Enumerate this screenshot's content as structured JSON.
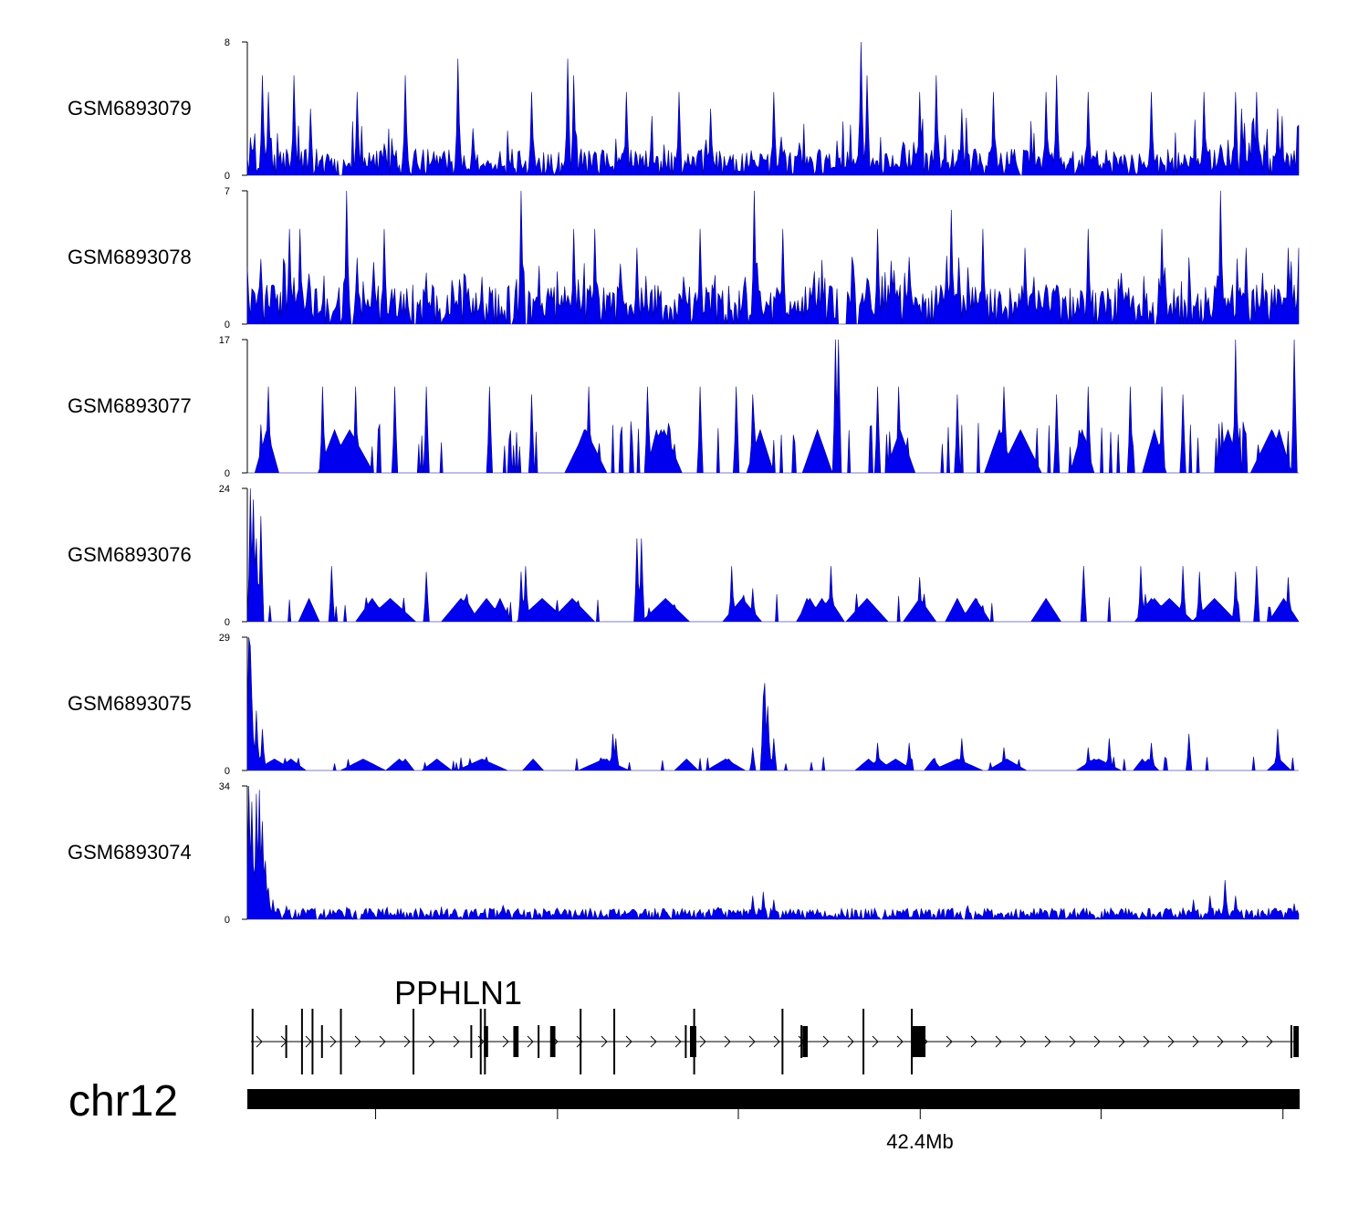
{
  "chart_data": {
    "type": "area",
    "tracks": [
      {
        "name": "GSM6893079",
        "ylim": [
          0,
          8
        ],
        "ymax_label": "8",
        "ymin_label": "0",
        "baseline": 1,
        "peak_prob": 0.09,
        "seed": 79,
        "peaks": [
          [
            0.015,
            6
          ],
          [
            0.02,
            5
          ],
          [
            0.045,
            6
          ],
          [
            0.06,
            4
          ],
          [
            0.105,
            5
          ],
          [
            0.15,
            6
          ],
          [
            0.2,
            7
          ],
          [
            0.27,
            5
          ],
          [
            0.305,
            7
          ],
          [
            0.31,
            6
          ],
          [
            0.36,
            5
          ],
          [
            0.41,
            5
          ],
          [
            0.44,
            4
          ],
          [
            0.5,
            5
          ],
          [
            0.584,
            8
          ],
          [
            0.59,
            6
          ],
          [
            0.64,
            5
          ],
          [
            0.655,
            6
          ],
          [
            0.68,
            4
          ],
          [
            0.71,
            5
          ],
          [
            0.76,
            5
          ],
          [
            0.77,
            6
          ],
          [
            0.8,
            5
          ],
          [
            0.86,
            5
          ],
          [
            0.91,
            5
          ],
          [
            0.94,
            5
          ],
          [
            0.945,
            4
          ],
          [
            0.96,
            5
          ],
          [
            0.98,
            4
          ],
          [
            1.0,
            3
          ]
        ]
      },
      {
        "name": "GSM6893078",
        "ylim": [
          0,
          7
        ],
        "ymax_label": "7",
        "ymin_label": "0",
        "baseline": 1.3,
        "peak_prob": 0.1,
        "seed": 78,
        "peaks": [
          [
            0.0,
            3
          ],
          [
            0.04,
            5
          ],
          [
            0.05,
            5
          ],
          [
            0.094,
            7
          ],
          [
            0.13,
            5
          ],
          [
            0.26,
            7
          ],
          [
            0.31,
            5
          ],
          [
            0.33,
            5
          ],
          [
            0.37,
            4
          ],
          [
            0.43,
            5
          ],
          [
            0.482,
            7
          ],
          [
            0.51,
            5
          ],
          [
            0.6,
            5
          ],
          [
            0.67,
            6
          ],
          [
            0.7,
            5
          ],
          [
            0.74,
            4
          ],
          [
            0.8,
            5
          ],
          [
            0.87,
            5
          ],
          [
            0.925,
            7
          ],
          [
            0.95,
            4
          ],
          [
            0.99,
            4
          ],
          [
            1.0,
            4
          ]
        ]
      },
      {
        "name": "GSM6893077",
        "ylim": [
          0,
          17
        ],
        "ymax_label": "17",
        "ymin_label": "0",
        "baseline": 0,
        "peak_prob": 0.11,
        "seed": 77,
        "tri": 5.5,
        "peaks": [
          [
            0.02,
            11
          ],
          [
            0.072,
            11
          ],
          [
            0.103,
            11
          ],
          [
            0.14,
            11
          ],
          [
            0.17,
            11
          ],
          [
            0.23,
            11
          ],
          [
            0.27,
            10
          ],
          [
            0.325,
            11
          ],
          [
            0.38,
            11
          ],
          [
            0.43,
            11
          ],
          [
            0.465,
            11
          ],
          [
            0.48,
            10
          ],
          [
            0.56,
            17
          ],
          [
            0.562,
            17
          ],
          [
            0.6,
            11
          ],
          [
            0.62,
            11
          ],
          [
            0.675,
            10
          ],
          [
            0.72,
            11
          ],
          [
            0.77,
            10
          ],
          [
            0.8,
            11
          ],
          [
            0.84,
            11
          ],
          [
            0.87,
            11
          ],
          [
            0.89,
            10
          ],
          [
            0.94,
            17
          ],
          [
            0.995,
            17
          ]
        ]
      },
      {
        "name": "GSM6893076",
        "ylim": [
          0,
          24
        ],
        "ymax_label": "24",
        "ymin_label": "0",
        "baseline": 0,
        "peak_prob": 0.06,
        "seed": 76,
        "tri": 4.2,
        "peaks": [
          [
            0.003,
            24
          ],
          [
            0.006,
            22
          ],
          [
            0.009,
            15
          ],
          [
            0.013,
            19
          ],
          [
            0.08,
            10
          ],
          [
            0.17,
            9
          ],
          [
            0.26,
            9
          ],
          [
            0.265,
            10
          ],
          [
            0.37,
            15
          ],
          [
            0.375,
            15
          ],
          [
            0.46,
            10
          ],
          [
            0.48,
            6
          ],
          [
            0.555,
            10
          ],
          [
            0.58,
            5
          ],
          [
            0.64,
            8
          ],
          [
            0.795,
            10
          ],
          [
            0.85,
            10
          ],
          [
            0.89,
            10
          ],
          [
            0.905,
            9
          ],
          [
            0.94,
            9
          ],
          [
            0.96,
            10
          ],
          [
            0.99,
            8
          ]
        ]
      },
      {
        "name": "GSM6893075",
        "ylim": [
          0,
          29
        ],
        "ymax_label": "29",
        "ymin_label": "0",
        "baseline": 0,
        "peak_prob": 0.05,
        "seed": 75,
        "tri": 2.5,
        "peaks": [
          [
            0.001,
            29
          ],
          [
            0.003,
            27
          ],
          [
            0.005,
            16
          ],
          [
            0.008,
            13
          ],
          [
            0.015,
            9
          ],
          [
            0.347,
            8
          ],
          [
            0.35,
            7
          ],
          [
            0.48,
            5
          ],
          [
            0.49,
            16
          ],
          [
            0.492,
            19
          ],
          [
            0.495,
            14
          ],
          [
            0.5,
            7
          ],
          [
            0.6,
            6
          ],
          [
            0.63,
            6
          ],
          [
            0.68,
            7
          ],
          [
            0.72,
            5
          ],
          [
            0.8,
            5
          ],
          [
            0.82,
            7
          ],
          [
            0.86,
            6
          ],
          [
            0.895,
            8
          ],
          [
            0.98,
            9
          ]
        ]
      },
      {
        "name": "GSM6893074",
        "ylim": [
          0,
          34
        ],
        "ymax_label": "34",
        "ymin_label": "0",
        "baseline": 1.8,
        "peak_prob": 0.05,
        "seed": 74,
        "peaks": [
          [
            0.002,
            34
          ],
          [
            0.005,
            30
          ],
          [
            0.008,
            32
          ],
          [
            0.011,
            33
          ],
          [
            0.014,
            25
          ],
          [
            0.017,
            15
          ],
          [
            0.02,
            8
          ],
          [
            0.025,
            5
          ],
          [
            0.48,
            6
          ],
          [
            0.49,
            7
          ],
          [
            0.5,
            5
          ],
          [
            0.9,
            5
          ],
          [
            0.915,
            6
          ],
          [
            0.93,
            10
          ],
          [
            0.94,
            6
          ],
          [
            0.995,
            4
          ]
        ]
      }
    ],
    "gene": {
      "name": "PPHLN1",
      "strand": "+",
      "tall_exons": [
        0.005,
        0.037,
        0.052,
        0.062,
        0.071,
        0.089,
        0.158,
        0.213,
        0.222,
        0.226,
        0.277,
        0.317,
        0.349,
        0.417,
        0.425,
        0.509,
        0.527,
        0.586,
        0.632,
        0.993
      ],
      "thick_exons": [
        [
          0.225,
          0.229
        ],
        [
          0.253,
          0.258
        ],
        [
          0.288,
          0.293
        ],
        [
          0.421,
          0.427
        ],
        [
          0.528,
          0.533
        ],
        [
          0.632,
          0.645
        ],
        [
          0.995,
          1.0
        ]
      ]
    },
    "chromosome": {
      "name": "chr12",
      "tick_positions": [
        0.122,
        0.295,
        0.467,
        0.64,
        0.812,
        0.985
      ],
      "tick_label": "42.4Mb",
      "labeled_tick": 0.64
    }
  }
}
